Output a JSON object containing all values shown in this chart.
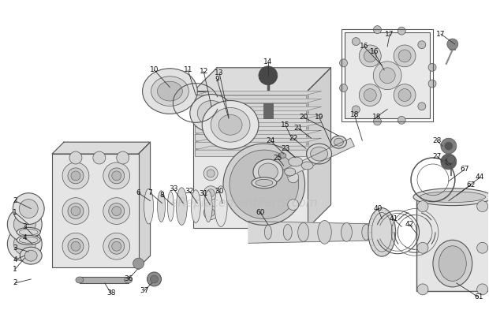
{
  "bg_color": "#ffffff",
  "line_color": "#555555",
  "lw_thin": 0.5,
  "lw_med": 0.8,
  "lw_thick": 1.0,
  "watermark_text": "eReplacementParts.com",
  "watermark_color": "#bbbbbb",
  "watermark_fontsize": 11,
  "label_fontsize": 6.5,
  "figsize": [
    6.2,
    4.07
  ],
  "dpi": 100
}
